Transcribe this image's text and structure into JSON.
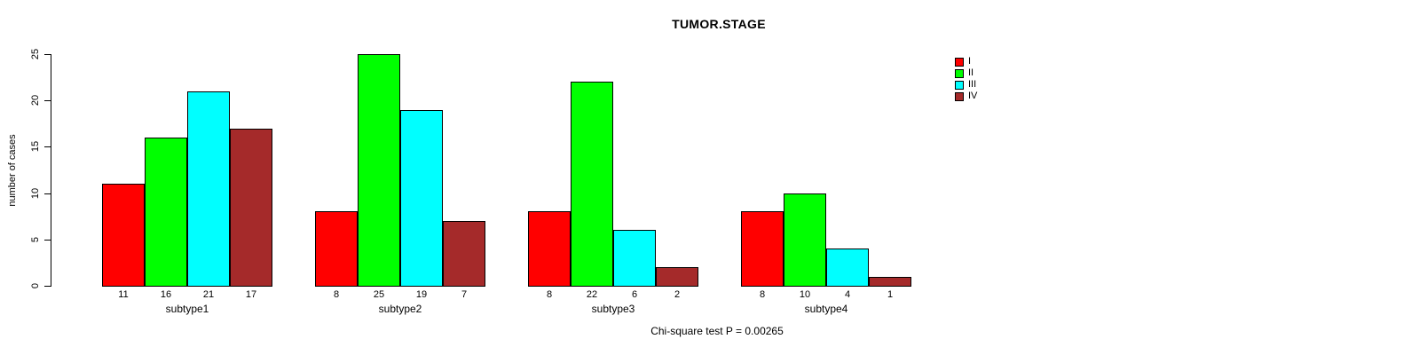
{
  "chart_data": {
    "type": "bar",
    "title": "TUMOR.STAGE",
    "ylabel": "number of cases",
    "xlabel": "",
    "ylim": [
      0,
      25
    ],
    "yticks": [
      0,
      5,
      10,
      15,
      20,
      25
    ],
    "categories": [
      "subtype1",
      "subtype2",
      "subtype3",
      "subtype4"
    ],
    "series": [
      {
        "name": "I",
        "color": "#ff0000",
        "values": [
          11,
          8,
          8,
          8
        ]
      },
      {
        "name": "II",
        "color": "#00ff00",
        "values": [
          16,
          25,
          22,
          10
        ]
      },
      {
        "name": "III",
        "color": "#00ffff",
        "values": [
          21,
          19,
          6,
          4
        ]
      },
      {
        "name": "IV",
        "color": "#a52a2a",
        "values": [
          17,
          7,
          2,
          1
        ]
      }
    ],
    "bar_value_labels_shown": true,
    "grid": false,
    "legend_position": "top-right",
    "legend_entries": [
      "I",
      "II",
      "III",
      "IV"
    ],
    "annotation": "Chi-square test P = 0.00265"
  }
}
